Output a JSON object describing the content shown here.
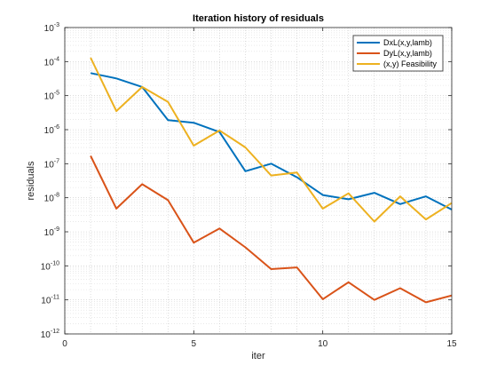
{
  "chart_data": {
    "type": "line",
    "title": "Iteration history of residuals",
    "xlabel": "iter",
    "ylabel": "residuals",
    "xlim": [
      0,
      15
    ],
    "ylim_log10": [
      -12,
      -3
    ],
    "yscale": "log",
    "grid": true,
    "minor_grid": true,
    "legend_position": "top-right",
    "x_ticks": [
      0,
      5,
      10,
      15
    ],
    "y_ticks": [
      {
        "exp": -12,
        "label": "10-12"
      },
      {
        "exp": -11,
        "label": "10-11"
      },
      {
        "exp": -10,
        "label": "10-10"
      },
      {
        "exp": -9,
        "label": "10-9"
      },
      {
        "exp": -8,
        "label": "10-8"
      },
      {
        "exp": -7,
        "label": "10-7"
      },
      {
        "exp": -6,
        "label": "10-6"
      },
      {
        "exp": -5,
        "label": "10-5"
      },
      {
        "exp": -4,
        "label": "10-4"
      },
      {
        "exp": -3,
        "label": "10-3"
      }
    ],
    "x": [
      1,
      2,
      3,
      4,
      5,
      6,
      7,
      8,
      9,
      10,
      11,
      12,
      13,
      14,
      15
    ],
    "series": [
      {
        "name": "DxL(x,y,lamb)",
        "color": "#0072BD",
        "values": [
          4.6e-05,
          3.2e-05,
          1.8e-05,
          1.9e-06,
          1.6e-06,
          8.5e-07,
          6e-08,
          1e-07,
          4e-08,
          1.2e-08,
          9e-09,
          1.4e-08,
          6.5e-09,
          1.1e-08,
          4.5e-09
        ]
      },
      {
        "name": "DyL(x,y,lamb)",
        "color": "#D95319",
        "values": [
          1.7e-07,
          4.8e-09,
          2.5e-08,
          8.5e-09,
          4.8e-10,
          1.25e-09,
          3.5e-10,
          8e-11,
          9e-11,
          1.05e-11,
          3.3e-11,
          1e-11,
          2.2e-11,
          8.5e-12,
          1.35e-11
        ]
      },
      {
        "name": "(x,y) Feasibility",
        "color": "#EDB120",
        "values": [
          0.00013,
          3.5e-06,
          1.8e-05,
          6.5e-06,
          3.4e-07,
          9.5e-07,
          3e-07,
          4.5e-08,
          5.5e-08,
          4.8e-09,
          1.35e-08,
          2e-09,
          1.1e-08,
          2.3e-09,
          7e-09
        ]
      }
    ]
  }
}
